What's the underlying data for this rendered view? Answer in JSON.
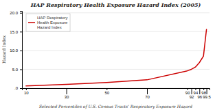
{
  "chart_data": {
    "type": "line",
    "title": "HAP Respiratory Health Exposure Hazard Index (2005)",
    "xlabel": "Selected Percentiles of U.S. Census Tracts’ Respiratory Exposure Hazard",
    "ylabel": "Hazard Index",
    "x": [
      10,
      30,
      50,
      70,
      90,
      92,
      94,
      96,
      98,
      99.5
    ],
    "series": [
      {
        "name": "HAP Respiratory\nHealth Exposure\nHazard Index",
        "color": "#cc0000",
        "values": [
          0.6,
          1.0,
          1.5,
          2.2,
          4.6,
          5.0,
          5.6,
          6.8,
          8.5,
          15.6
        ]
      }
    ],
    "xlim": [
      8,
      101
    ],
    "xticks": [
      10,
      30,
      50,
      70,
      90,
      92,
      94,
      96,
      98,
      99.5
    ],
    "ylim": [
      0.0,
      20.5
    ],
    "yticks": [
      {
        "value": 0.0,
        "label": ".0"
      },
      {
        "value": 5.0,
        "label": "5.0"
      },
      {
        "value": 10.0,
        "label": "10.0"
      },
      {
        "value": 15.0,
        "label": "15.0"
      },
      {
        "value": 20.0,
        "label": "20.0"
      }
    ],
    "grid": true,
    "legend": "upper left"
  }
}
